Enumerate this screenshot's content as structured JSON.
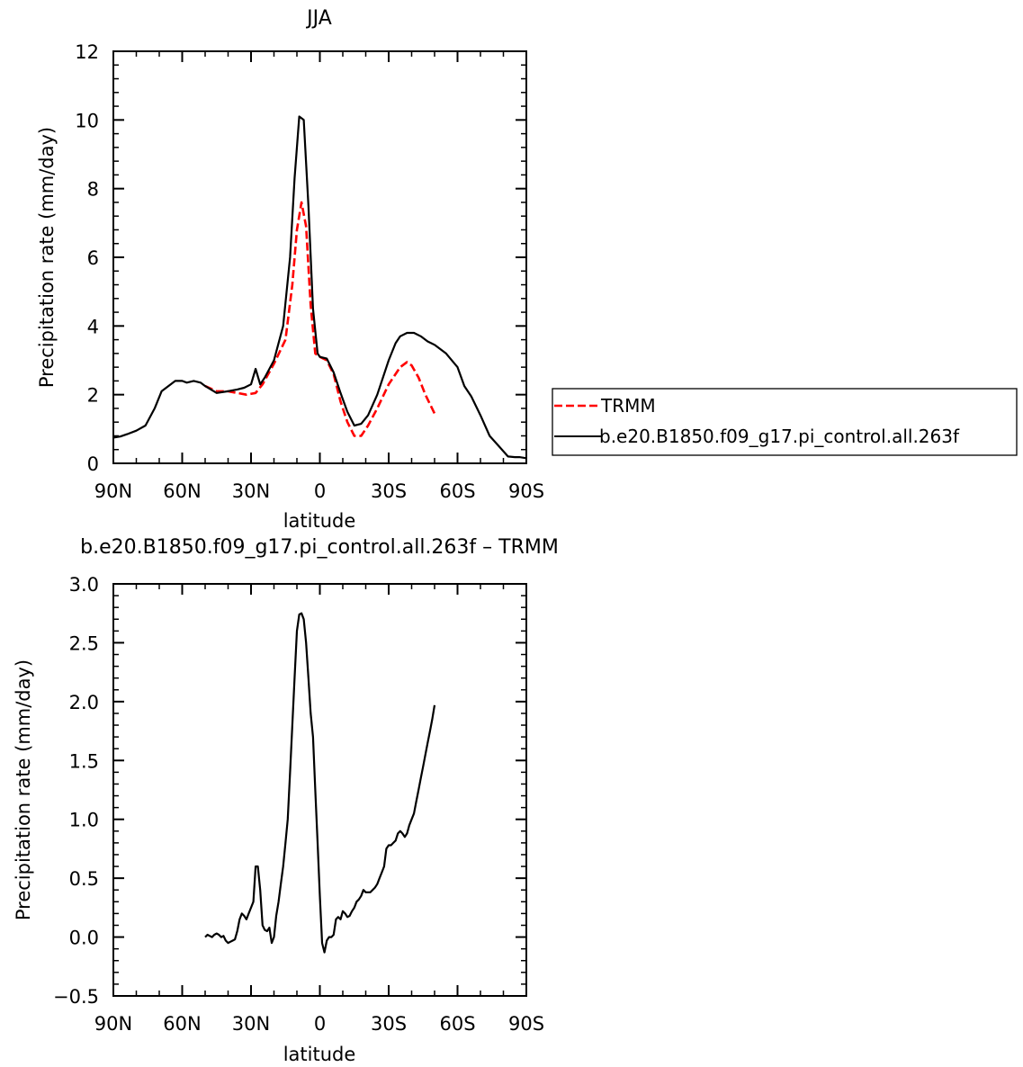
{
  "chart_data": [
    {
      "type": "line",
      "title": "JJA",
      "xlabel": "latitude",
      "ylabel": "Precipitation rate (mm/day)",
      "xlim": [
        90,
        -90
      ],
      "ylim": [
        0,
        12
      ],
      "x_tick_values": [
        90,
        60,
        30,
        0,
        -30,
        -60,
        -90
      ],
      "x_tick_labels": [
        "90N",
        "60N",
        "30N",
        "0",
        "30S",
        "60S",
        "90S"
      ],
      "y_tick_values": [
        0,
        2,
        4,
        6,
        8,
        10,
        12
      ],
      "y_tick_labels": [
        "0",
        "2",
        "4",
        "6",
        "8",
        "10",
        "12"
      ],
      "legend_position": "right",
      "series": [
        {
          "name": "TRMM",
          "color": "#ff0000",
          "dash": "dashed",
          "x": [
            50,
            45,
            40,
            36,
            32,
            28,
            25,
            20,
            15,
            12,
            10,
            8,
            6,
            4,
            2,
            0,
            -3,
            -6,
            -9,
            -12,
            -15,
            -18,
            -21,
            -25,
            -30,
            -35,
            -38,
            -40,
            -43,
            -46,
            -50
          ],
          "y": [
            2.25,
            2.1,
            2.1,
            2.05,
            2.0,
            2.05,
            2.3,
            2.9,
            3.6,
            5.2,
            6.8,
            7.6,
            6.9,
            4.6,
            3.2,
            3.1,
            3.0,
            2.6,
            1.8,
            1.2,
            0.8,
            0.8,
            1.1,
            1.6,
            2.3,
            2.8,
            2.95,
            2.85,
            2.5,
            2.0,
            1.45
          ]
        },
        {
          "name": "b.e20.B1850.f09_g17.pi_control.all.263f",
          "color": "#000000",
          "dash": "solid",
          "x": [
            90,
            87,
            84,
            80,
            76,
            72,
            69,
            66,
            63,
            60,
            58,
            55,
            52,
            50,
            45,
            40,
            36,
            33,
            30,
            28,
            26,
            24,
            20,
            16,
            13,
            11,
            9,
            7,
            5,
            3,
            1,
            0,
            -3,
            -6,
            -9,
            -12,
            -15,
            -18,
            -21,
            -25,
            -30,
            -33,
            -35,
            -38,
            -41,
            -44,
            -47,
            -50,
            -55,
            -60,
            -63,
            -66,
            -70,
            -74,
            -78,
            -82,
            -85,
            -87,
            -90
          ],
          "y": [
            0.75,
            0.78,
            0.85,
            0.95,
            1.1,
            1.6,
            2.1,
            2.25,
            2.4,
            2.4,
            2.35,
            2.4,
            2.35,
            2.25,
            2.05,
            2.1,
            2.15,
            2.2,
            2.3,
            2.75,
            2.3,
            2.5,
            3.0,
            4.0,
            6.0,
            8.3,
            10.1,
            10.0,
            7.5,
            4.5,
            3.2,
            3.1,
            3.05,
            2.65,
            2.05,
            1.5,
            1.1,
            1.15,
            1.4,
            2.0,
            3.0,
            3.5,
            3.7,
            3.8,
            3.8,
            3.7,
            3.55,
            3.45,
            3.2,
            2.8,
            2.25,
            1.95,
            1.4,
            0.8,
            0.5,
            0.2,
            0.18,
            0.18,
            0.15
          ]
        }
      ]
    },
    {
      "type": "line",
      "title": "b.e20.B1850.f09_g17.pi_control.all.263f – TRMM",
      "xlabel": "latitude",
      "ylabel": "Precipitation rate (mm/day)",
      "xlim": [
        90,
        -90
      ],
      "ylim": [
        -0.5,
        3.0
      ],
      "x_tick_values": [
        90,
        60,
        30,
        0,
        -30,
        -60,
        -90
      ],
      "x_tick_labels": [
        "90N",
        "60N",
        "30N",
        "0",
        "30S",
        "60S",
        "90S"
      ],
      "y_tick_values": [
        -0.5,
        0.0,
        0.5,
        1.0,
        1.5,
        2.0,
        2.5,
        3.0
      ],
      "y_tick_labels": [
        "−0.5",
        "0.0",
        "0.5",
        "1.0",
        "1.5",
        "2.0",
        "2.5",
        "3.0"
      ],
      "series": [
        {
          "name": "",
          "color": "#000000",
          "dash": "solid",
          "x": [
            50,
            49,
            48,
            47,
            46,
            45,
            44,
            43,
            42,
            41,
            40,
            39,
            38,
            37,
            36,
            35,
            34,
            33,
            32,
            31,
            30,
            29,
            28,
            27,
            26,
            25,
            24,
            23,
            22,
            21,
            20,
            19,
            18,
            17,
            16,
            15,
            14,
            13,
            12,
            11,
            10,
            9,
            8,
            7,
            6,
            5,
            4,
            3,
            2,
            1,
            0,
            -1,
            -2,
            -3,
            -4,
            -5,
            -6,
            -7,
            -8,
            -9,
            -10,
            -11,
            -12,
            -13,
            -14,
            -15,
            -16,
            -17,
            -18,
            -19,
            -20,
            -21,
            -22,
            -23,
            -24,
            -25,
            -26,
            -27,
            -28,
            -29,
            -30,
            -31,
            -32,
            -33,
            -34,
            -35,
            -36,
            -37,
            -38,
            -39,
            -40,
            -41,
            -42,
            -43,
            -44,
            -45,
            -46,
            -47,
            -48,
            -49,
            -50
          ],
          "y": [
            0.0,
            0.02,
            0.01,
            0.0,
            0.02,
            0.03,
            0.02,
            0.0,
            0.01,
            -0.03,
            -0.05,
            -0.04,
            -0.03,
            -0.02,
            0.05,
            0.15,
            0.2,
            0.18,
            0.15,
            0.2,
            0.25,
            0.3,
            0.6,
            0.6,
            0.4,
            0.1,
            0.06,
            0.05,
            0.08,
            -0.05,
            0.0,
            0.18,
            0.3,
            0.45,
            0.6,
            0.8,
            1.0,
            1.4,
            1.8,
            2.2,
            2.6,
            2.74,
            2.75,
            2.7,
            2.5,
            2.2,
            1.9,
            1.7,
            1.25,
            0.8,
            0.35,
            -0.05,
            -0.13,
            -0.03,
            0.0,
            0.0,
            0.02,
            0.15,
            0.17,
            0.15,
            0.22,
            0.2,
            0.17,
            0.18,
            0.22,
            0.25,
            0.3,
            0.32,
            0.35,
            0.4,
            0.38,
            0.38,
            0.38,
            0.4,
            0.42,
            0.45,
            0.5,
            0.55,
            0.6,
            0.75,
            0.78,
            0.78,
            0.8,
            0.82,
            0.88,
            0.9,
            0.88,
            0.85,
            0.88,
            0.95,
            1.0,
            1.05,
            1.15,
            1.25,
            1.35,
            1.45,
            1.55,
            1.65,
            1.75,
            1.85,
            1.97
          ]
        }
      ]
    }
  ]
}
